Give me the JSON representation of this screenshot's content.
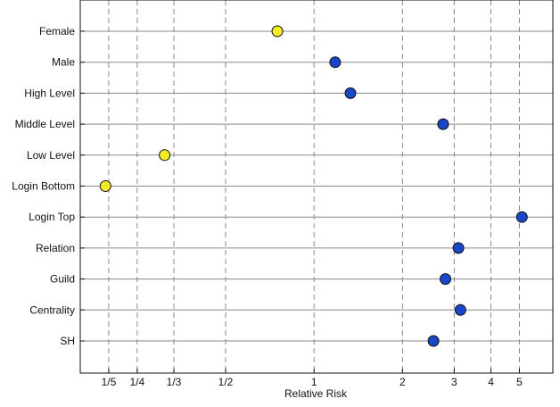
{
  "chart_data": {
    "type": "scatter",
    "title": "",
    "xlabel": "Relative Risk",
    "ylabel": "",
    "x_scale": "log",
    "xlim": [
      0.16,
      6.5
    ],
    "x_ticks": [
      {
        "value": 0.2,
        "label": "1/5"
      },
      {
        "value": 0.25,
        "label": "1/4"
      },
      {
        "value": 0.3333,
        "label": "1/3"
      },
      {
        "value": 0.5,
        "label": "1/2"
      },
      {
        "value": 1,
        "label": "1"
      },
      {
        "value": 2,
        "label": "2"
      },
      {
        "value": 3,
        "label": "3"
      },
      {
        "value": 4,
        "label": "4"
      },
      {
        "value": 5,
        "label": "5"
      }
    ],
    "grid": {
      "vertical": "dashed",
      "horizontal": "solid"
    },
    "legend": "none",
    "colors": {
      "below_one": "#f5ec2a",
      "above_one": "#1a46c8",
      "outline": "#111111"
    },
    "points": [
      {
        "category": "Female",
        "value": 0.75,
        "color": "#f5ec2a"
      },
      {
        "category": "Male",
        "value": 1.18,
        "color": "#1a46c8"
      },
      {
        "category": "High Level",
        "value": 1.33,
        "color": "#1a46c8"
      },
      {
        "category": "Middle Level",
        "value": 2.75,
        "color": "#1a46c8"
      },
      {
        "category": "Low Level",
        "value": 0.31,
        "color": "#f5ec2a"
      },
      {
        "category": "Login Bottom",
        "value": 0.195,
        "color": "#f5ec2a"
      },
      {
        "category": "Login Top",
        "value": 5.1,
        "color": "#1a46c8"
      },
      {
        "category": "Relation",
        "value": 3.1,
        "color": "#1a46c8"
      },
      {
        "category": "Guild",
        "value": 2.8,
        "color": "#1a46c8"
      },
      {
        "category": "Centrality",
        "value": 3.15,
        "color": "#1a46c8"
      },
      {
        "category": "SH",
        "value": 2.55,
        "color": "#1a46c8"
      }
    ]
  }
}
